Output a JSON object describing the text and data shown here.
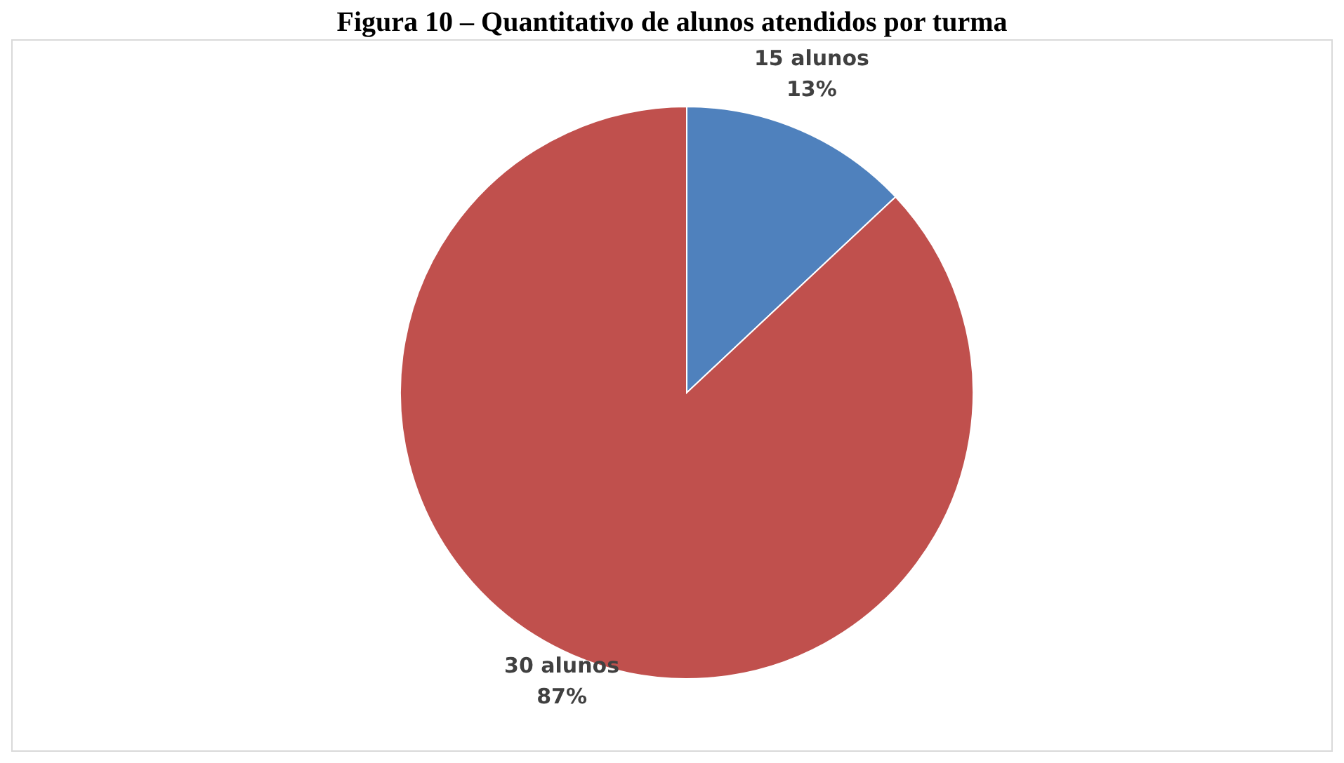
{
  "chart_data": {
    "type": "pie",
    "title": "Figura 10 – Quantitativo de alunos atendidos por turma",
    "categories": [
      "15 alunos",
      "30 alunos"
    ],
    "values": [
      13,
      87
    ],
    "colors": [
      "#4f81bd",
      "#c0504d"
    ],
    "value_labels": [
      "13%",
      "87%"
    ],
    "legend": false
  }
}
